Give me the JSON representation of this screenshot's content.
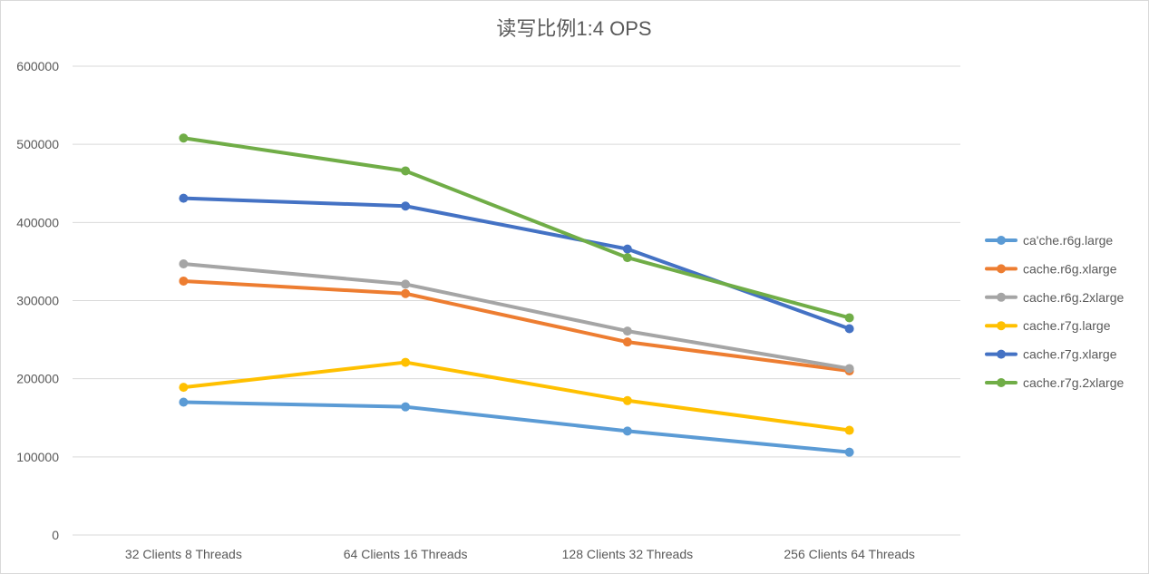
{
  "chart_data": {
    "type": "line",
    "title": "读写比例1:4 OPS",
    "xlabel": "",
    "ylabel": "",
    "categories": [
      "32 Clients 8 Threads",
      "64 Clients 16 Threads",
      "128 Clients 32 Threads",
      "256 Clients 64 Threads"
    ],
    "ylim": [
      0,
      600000
    ],
    "yticks": [
      0,
      100000,
      200000,
      300000,
      400000,
      500000,
      600000
    ],
    "ytick_labels": [
      "0",
      "100000",
      "200000",
      "300000",
      "400000",
      "500000",
      "600000"
    ],
    "grid": true,
    "legend": "right",
    "series": [
      {
        "name": "ca'che.r6g.large",
        "color": "#5B9BD5",
        "values": [
          170000,
          164000,
          133000,
          106000
        ]
      },
      {
        "name": "cache.r6g.xlarge",
        "color": "#ED7D31",
        "values": [
          325000,
          309000,
          247000,
          210000
        ]
      },
      {
        "name": "cache.r6g.2xlarge",
        "color": "#A5A5A5",
        "values": [
          347000,
          321000,
          261000,
          213000
        ]
      },
      {
        "name": "cache.r7g.large",
        "color": "#FFC000",
        "values": [
          189000,
          221000,
          172000,
          134000
        ]
      },
      {
        "name": "cache.r7g.xlarge",
        "color": "#4472C4",
        "values": [
          431000,
          421000,
          366000,
          264000
        ]
      },
      {
        "name": "cache.r7g.2xlarge",
        "color": "#70AD47",
        "values": [
          508000,
          466000,
          355000,
          278000
        ]
      }
    ]
  }
}
